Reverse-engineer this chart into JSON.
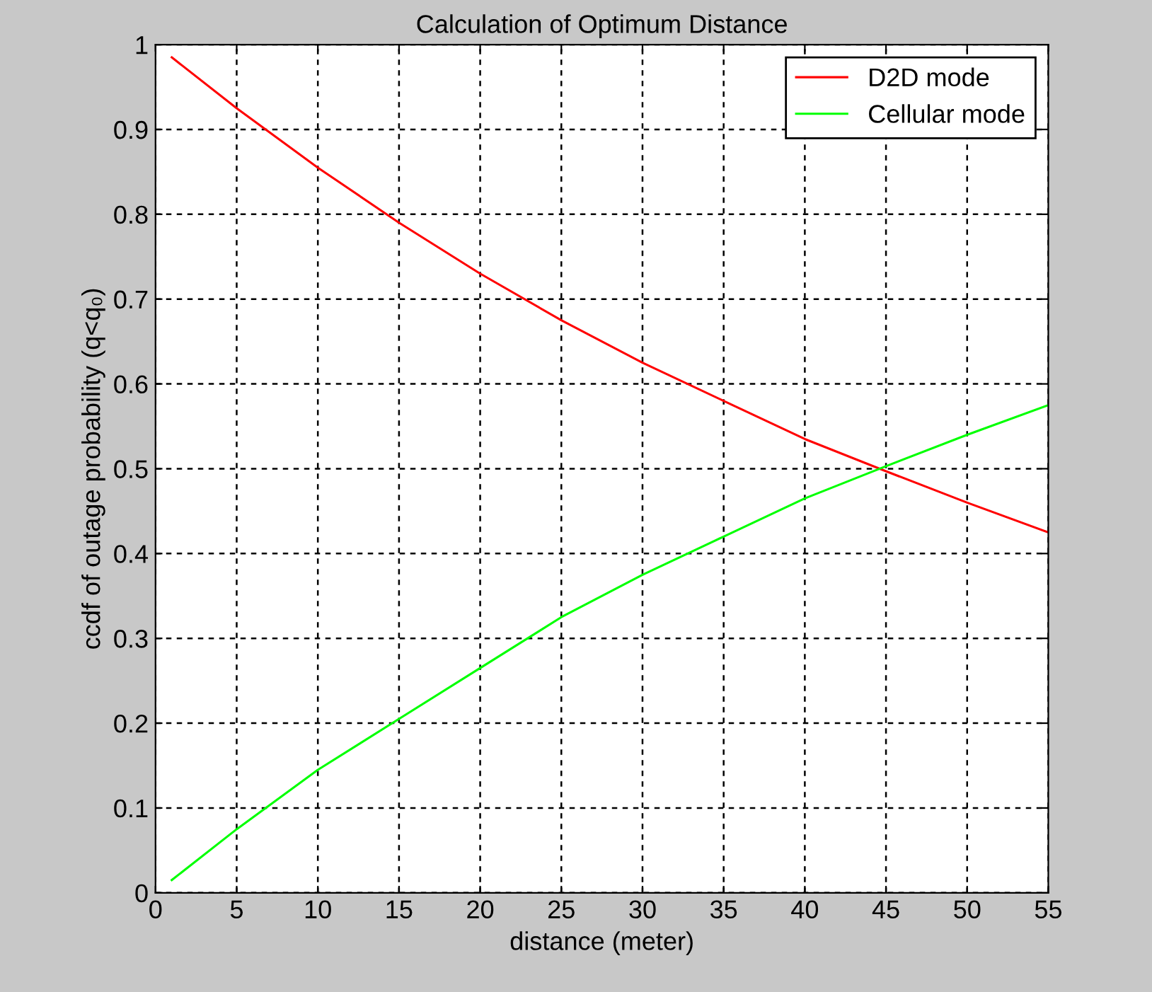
{
  "chart_data": {
    "type": "line",
    "title": "Calculation of Optimum Distance",
    "xlabel": "distance (meter)",
    "ylabel": "ccdf of outage probability (q<q₀)",
    "x": [
      1,
      5,
      10,
      15,
      20,
      25,
      30,
      35,
      40,
      45,
      50,
      55
    ],
    "series": [
      {
        "name": "D2D mode",
        "color": "#ff0000",
        "values": [
          0.985,
          0.925,
          0.855,
          0.79,
          0.73,
          0.675,
          0.625,
          0.58,
          0.535,
          0.497,
          0.46,
          0.425
        ]
      },
      {
        "name": "Cellular mode",
        "color": "#00ff00",
        "values": [
          0.015,
          0.075,
          0.145,
          0.205,
          0.265,
          0.325,
          0.375,
          0.42,
          0.465,
          0.503,
          0.54,
          0.575
        ]
      }
    ],
    "xlim": [
      0,
      55
    ],
    "ylim": [
      0,
      1
    ],
    "xticks": [
      0,
      5,
      10,
      15,
      20,
      25,
      30,
      35,
      40,
      45,
      50,
      55
    ],
    "yticks": [
      0,
      0.1,
      0.2,
      0.3,
      0.4,
      0.5,
      0.6,
      0.7,
      0.8,
      0.9,
      1
    ],
    "grid": true,
    "legend": "top right",
    "line_style": "solid",
    "marker": "none"
  }
}
